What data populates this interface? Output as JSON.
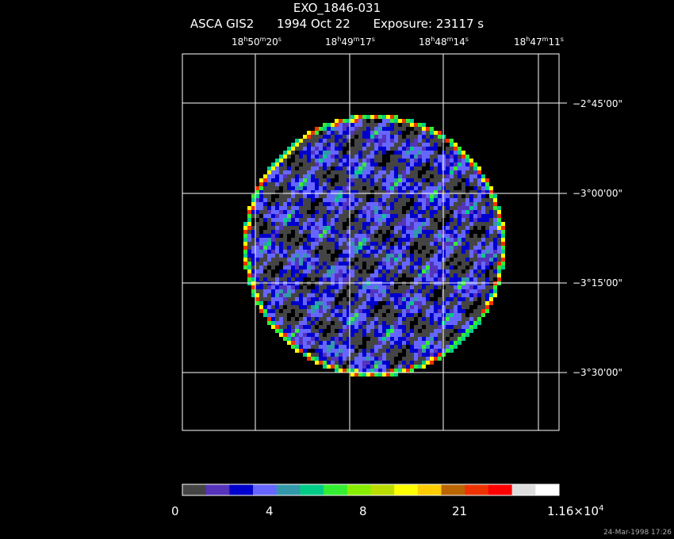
{
  "header": {
    "object": "EXO_1846-031",
    "instrument": "ASCA GIS2",
    "date": "1994 Oct 22",
    "exposure": "Exposure: 23117 s"
  },
  "ra_labels": [
    {
      "h": "18",
      "m": "50",
      "s": "20"
    },
    {
      "h": "18",
      "m": "49",
      "s": "17"
    },
    {
      "h": "18",
      "m": "48",
      "s": "14"
    },
    {
      "h": "18",
      "m": "47",
      "s": "11"
    }
  ],
  "dec_labels": [
    "−2°45'00\"",
    "−3°00'00\"",
    "−3°15'00\"",
    "−3°30'00\""
  ],
  "colorbar": {
    "colors": [
      "#444444",
      "#5533bb",
      "#0000cc",
      "#6666ff",
      "#3399aa",
      "#00cc88",
      "#33ee33",
      "#88ee00",
      "#bbdd00",
      "#ffff00",
      "#ffcc00",
      "#bb6600",
      "#ee3300",
      "#ff0000",
      "#dddddd",
      "#ffffff"
    ],
    "labels": [
      "0",
      "4",
      "8",
      "21"
    ],
    "max_base": "1.16×10",
    "max_exp": "4"
  },
  "timestamp": "24-Mar-1998 17:26"
}
